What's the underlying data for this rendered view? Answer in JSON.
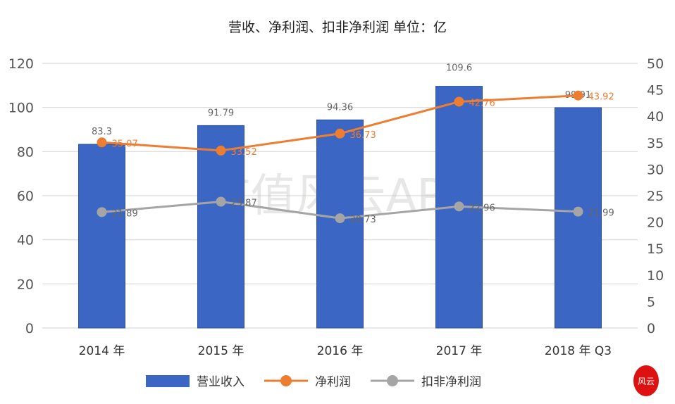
{
  "chart_data": {
    "type": "bar+line",
    "title": "营收、净利润、扣非净利润    单位：亿",
    "categories": [
      "2014 年",
      "2015 年",
      "2016 年",
      "2017 年",
      "2018 年 Q3"
    ],
    "y_left": {
      "range": [
        0,
        120
      ],
      "ticks": [
        0,
        20,
        40,
        60,
        80,
        100,
        120
      ]
    },
    "y_right": {
      "range": [
        0,
        50
      ],
      "ticks": [
        0,
        5,
        10,
        15,
        20,
        25,
        30,
        35,
        40,
        45,
        50
      ]
    },
    "grid": true,
    "legend_position": "bottom",
    "series": [
      {
        "name": "营业收入",
        "type": "bar",
        "axis": "left",
        "color": "#3b66c4",
        "values": [
          83.3,
          91.79,
          94.36,
          109.6,
          99.91
        ],
        "labels": [
          "83.3",
          "91.79",
          "94.36",
          "109.6",
          "99.91"
        ]
      },
      {
        "name": "净利润",
        "type": "line",
        "axis": "right",
        "color": "#ed7d31",
        "values": [
          35.07,
          33.52,
          36.73,
          42.76,
          43.92
        ],
        "labels": [
          "35.07",
          "33.52",
          "36.73",
          "42.76",
          "43.92"
        ]
      },
      {
        "name": "扣非净利润",
        "type": "line",
        "axis": "right",
        "color": "#a5a5a5",
        "values": [
          21.89,
          23.87,
          20.73,
          22.96,
          21.99
        ],
        "labels": [
          "21.89",
          "23.87",
          "20.73",
          "22.96",
          "21.99"
        ]
      }
    ]
  },
  "watermark": "市值风云APP",
  "logo_text": "风云"
}
